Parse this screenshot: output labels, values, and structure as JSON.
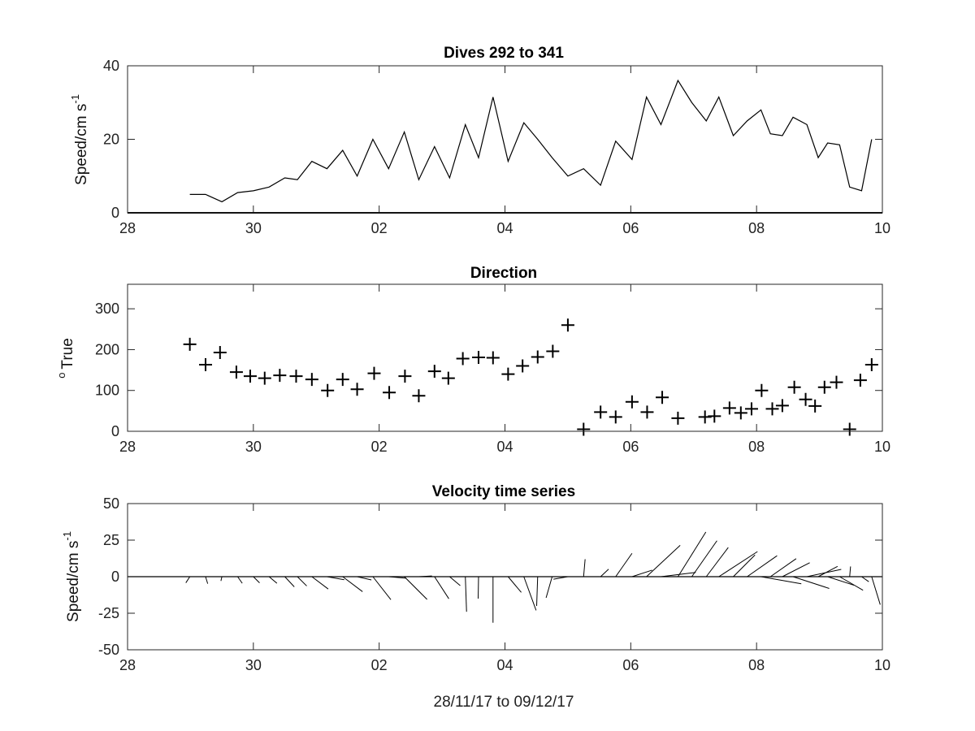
{
  "figure_xlabel": "28/11/17 to 09/12/17",
  "chart_data": [
    {
      "type": "line",
      "title": "Dives 292 to 341",
      "ylabel": "Speed/cm s",
      "ylabel_superscript": "-1",
      "xlim": [
        28,
        40
      ],
      "ylim": [
        0,
        40
      ],
      "xtick_positions": [
        28,
        30,
        32,
        34,
        36,
        38,
        40
      ],
      "xtick_labels": [
        "28",
        "30",
        "02",
        "04",
        "06",
        "08",
        "10"
      ],
      "ytick_positions": [
        0,
        20,
        40
      ],
      "ytick_labels": [
        "0",
        "20",
        "40"
      ],
      "grid": false,
      "series": [
        {
          "x": [
            28.99,
            29.24,
            29.5,
            29.75,
            30.0,
            30.25,
            30.5,
            30.7,
            30.93,
            31.17,
            31.42,
            31.65,
            31.9,
            32.15,
            32.4,
            32.63,
            32.88,
            33.12,
            33.37,
            33.58,
            33.81,
            34.05,
            34.3,
            34.52,
            34.75,
            35.0,
            35.25,
            35.52,
            35.76,
            36.02,
            36.25,
            36.48,
            36.75,
            36.97,
            37.2,
            37.4,
            37.63,
            37.85,
            38.07,
            38.22,
            38.41,
            38.58,
            38.8,
            38.98,
            39.13,
            39.32,
            39.48,
            39.67,
            39.83
          ],
          "y": [
            5,
            5,
            3,
            5.5,
            6,
            7,
            9.5,
            9,
            14,
            12,
            17,
            10,
            20,
            12,
            22,
            9,
            18,
            9.5,
            24,
            15,
            31.5,
            14,
            24.5,
            20,
            15,
            10,
            12,
            7.5,
            19.5,
            14.5,
            31.5,
            24,
            36,
            30,
            25,
            31.5,
            21,
            25,
            28,
            21.5,
            21,
            26,
            24,
            15,
            19,
            18.5,
            7,
            6,
            20
          ]
        }
      ]
    },
    {
      "type": "scatter",
      "title": "Direction",
      "ylabel": "True",
      "ylabel_prefix": "o",
      "xlim": [
        28,
        40
      ],
      "ylim": [
        0,
        360
      ],
      "xtick_positions": [
        28,
        30,
        32,
        34,
        36,
        38,
        40
      ],
      "xtick_labels": [
        "28",
        "30",
        "02",
        "04",
        "06",
        "08",
        "10"
      ],
      "ytick_positions": [
        0,
        100,
        200,
        300
      ],
      "ytick_labels": [
        "0",
        "100",
        "200",
        "300"
      ],
      "marker": "+",
      "grid": false,
      "series": [
        {
          "x": [
            28.99,
            29.24,
            29.47,
            29.73,
            29.95,
            30.18,
            30.42,
            30.68,
            30.93,
            31.18,
            31.42,
            31.65,
            31.92,
            32.16,
            32.41,
            32.63,
            32.88,
            33.1,
            33.33,
            33.58,
            33.81,
            34.05,
            34.28,
            34.52,
            34.76,
            35.0,
            35.25,
            35.52,
            35.76,
            36.02,
            36.26,
            36.5,
            36.75,
            37.18,
            37.33,
            37.57,
            37.75,
            37.92,
            38.08,
            38.25,
            38.41,
            38.6,
            38.78,
            38.93,
            39.08,
            39.27,
            39.48,
            39.65,
            39.83
          ],
          "y": [
            213,
            163,
            193,
            145,
            135,
            130,
            137,
            135,
            127,
            100,
            127,
            103,
            142,
            95,
            135,
            87,
            147,
            130,
            178,
            181,
            180,
            140,
            160,
            182,
            196,
            260,
            5,
            47,
            35,
            72,
            47,
            83,
            32,
            35,
            37,
            57,
            45,
            55,
            100,
            55,
            63,
            108,
            78,
            62,
            108,
            120,
            5,
            125,
            163
          ]
        }
      ]
    },
    {
      "type": "quiver",
      "title": "Velocity time series",
      "ylabel": "Speed/cm s",
      "ylabel_superscript": "-1",
      "xlim": [
        28,
        40
      ],
      "ylim": [
        -50,
        50
      ],
      "xtick_positions": [
        28,
        30,
        32,
        34,
        36,
        38,
        40
      ],
      "xtick_labels": [
        "28",
        "30",
        "02",
        "04",
        "06",
        "08",
        "10"
      ],
      "ytick_positions": [
        -50,
        -25,
        0,
        25,
        50
      ],
      "ytick_labels": [
        "-50",
        "-25",
        "0",
        "25",
        "50"
      ],
      "grid": false,
      "note_units": "stick direction uses degrees true with east to the right and north up; stick length scales with speed",
      "series": [
        {
          "x": [
            28.99,
            29.24,
            29.5,
            29.75,
            30.0,
            30.25,
            30.5,
            30.7,
            30.93,
            31.17,
            31.42,
            31.65,
            31.9,
            32.15,
            32.4,
            32.63,
            32.88,
            33.12,
            33.37,
            33.58,
            33.81,
            34.05,
            34.3,
            34.52,
            34.75,
            35.0,
            35.25,
            35.52,
            35.76,
            36.02,
            36.25,
            36.48,
            36.75,
            36.97,
            37.2,
            37.4,
            37.63,
            37.85,
            38.07,
            38.22,
            38.41,
            38.58,
            38.8,
            38.98,
            39.13,
            39.32,
            39.48,
            39.67,
            39.83
          ],
          "speed": [
            5,
            5,
            3,
            5.5,
            6,
            7,
            9.5,
            9,
            14,
            12,
            17,
            10,
            20,
            12,
            22,
            9,
            18,
            9.5,
            24,
            15,
            31.5,
            14,
            24.5,
            20,
            15,
            10,
            12,
            7.5,
            19.5,
            14.5,
            31.5,
            24,
            36,
            30,
            25,
            31.5,
            21,
            25,
            28,
            21.5,
            21,
            26,
            24,
            15,
            19,
            18.5,
            7,
            6,
            20
          ],
          "direction": [
            213,
            163,
            193,
            145,
            135,
            130,
            137,
            135,
            127,
            100,
            127,
            103,
            142,
            95,
            135,
            87,
            147,
            130,
            178,
            181,
            180,
            140,
            160,
            182,
            196,
            260,
            5,
            47,
            35,
            72,
            47,
            83,
            32,
            35,
            37,
            57,
            45,
            55,
            100,
            55,
            63,
            108,
            78,
            62,
            108,
            120,
            5,
            125,
            163
          ]
        }
      ]
    }
  ]
}
